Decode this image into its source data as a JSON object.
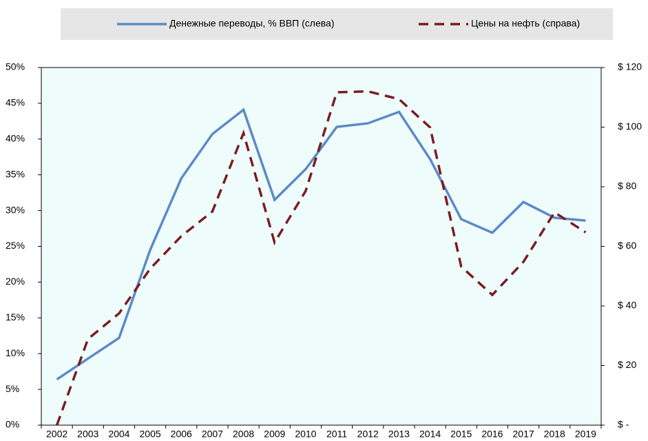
{
  "chart_data": {
    "type": "line",
    "categories": [
      "2002",
      "2003",
      "2004",
      "2005",
      "2006",
      "2007",
      "2008",
      "2009",
      "2010",
      "2011",
      "2012",
      "2013",
      "2014",
      "2015",
      "2016",
      "2017",
      "2018",
      "2019"
    ],
    "series": [
      {
        "name": "Денежные переводы, % ВВП (слева)",
        "color": "#5b8ac6",
        "dash": false,
        "values": [
          6.4,
          9.3,
          12.2,
          24.5,
          34.5,
          40.7,
          44.1,
          31.5,
          35.8,
          41.7,
          42.2,
          43.8,
          37.2,
          28.8,
          26.9,
          31.2,
          29.0,
          28.6
        ]
      },
      {
        "name": "Цены на нефть (справа)",
        "color": "#7b1c22",
        "dash": true,
        "axis": "y2",
        "values": [
          0,
          28.9,
          37.5,
          52.5,
          63.4,
          71.7,
          98,
          61.3,
          78.6,
          111.7,
          112,
          109.4,
          99.9,
          53.2,
          43.7,
          54.8,
          71.4,
          64.7
        ]
      }
    ],
    "ylim": [
      0,
      50
    ],
    "yticks": [
      {
        "value": 0,
        "label": "0%"
      },
      {
        "value": 5,
        "label": "5%"
      },
      {
        "value": 10,
        "label": "10%"
      },
      {
        "value": 15,
        "label": "15%"
      },
      {
        "value": 20,
        "label": "20%"
      },
      {
        "value": 25,
        "label": "25%"
      },
      {
        "value": 30,
        "label": "30%"
      },
      {
        "value": 35,
        "label": "35%"
      },
      {
        "value": 40,
        "label": "40%"
      },
      {
        "value": 45,
        "label": "45%"
      },
      {
        "value": 50,
        "label": "50%"
      }
    ],
    "y2lim": [
      0,
      120
    ],
    "y2ticks": [
      {
        "value": 0,
        "label": "$ -"
      },
      {
        "value": 20,
        "label": "$ 20"
      },
      {
        "value": 40,
        "label": "$ 40"
      },
      {
        "value": 60,
        "label": "$ 60"
      },
      {
        "value": 80,
        "label": "$ 80"
      },
      {
        "value": 100,
        "label": "$ 100"
      },
      {
        "value": 120,
        "label": "$ 120"
      }
    ],
    "legend": "top"
  }
}
